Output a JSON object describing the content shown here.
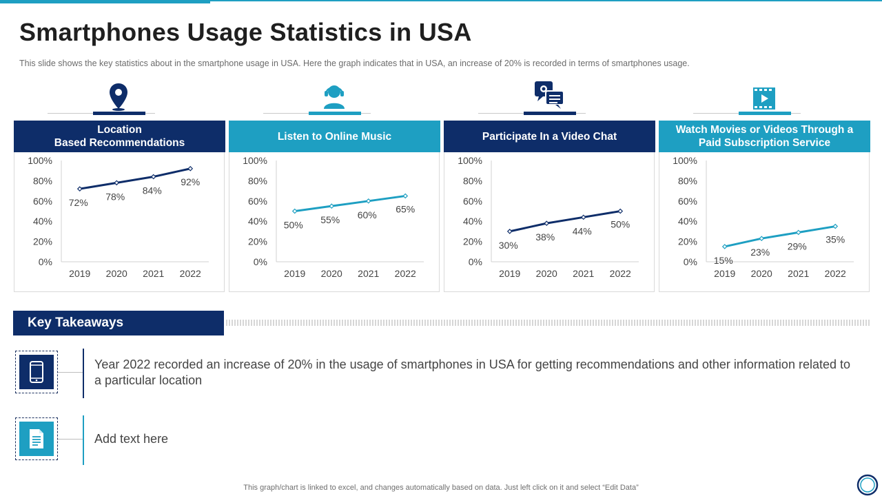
{
  "title": "Smartphones Usage Statistics in USA",
  "subtitle": "This slide shows the key statistics about in the smartphone usage in USA. Here the graph indicates that in USA, an increase of 20% is recorded in terms of smartphones usage.",
  "colors": {
    "dark": "#0e2d69",
    "light": "#1e9fc2"
  },
  "icons": [
    "location-pin-icon",
    "headset-user-icon",
    "chat-bubbles-icon",
    "video-play-icon"
  ],
  "chart_data": [
    {
      "type": "line",
      "title": "Location Based Recommendations",
      "header_line1": "Location",
      "header_line2": "Based Recommendations",
      "categories": [
        "2019",
        "2020",
        "2021",
        "2022"
      ],
      "values": [
        72,
        78,
        84,
        92
      ],
      "labels": [
        "72%",
        "78%",
        "84%",
        "92%"
      ],
      "ylim": [
        0,
        100
      ],
      "yticks": [
        "0%",
        "20%",
        "40%",
        "60%",
        "80%",
        "100%"
      ],
      "color": "#0e2d69"
    },
    {
      "type": "line",
      "title": "Listen to Online Music",
      "header_line1": "Listen to Online Music",
      "header_line2": "",
      "categories": [
        "2019",
        "2020",
        "2021",
        "2022"
      ],
      "values": [
        50,
        55,
        60,
        65
      ],
      "labels": [
        "50%",
        "55%",
        "60%",
        "65%"
      ],
      "ylim": [
        0,
        100
      ],
      "yticks": [
        "0%",
        "20%",
        "40%",
        "60%",
        "80%",
        "100%"
      ],
      "color": "#1e9fc2"
    },
    {
      "type": "line",
      "title": "Participate In a Video Chat",
      "header_line1": "Participate In a Video Chat",
      "header_line2": "",
      "categories": [
        "2019",
        "2020",
        "2021",
        "2022"
      ],
      "values": [
        30,
        38,
        44,
        50
      ],
      "labels": [
        "30%",
        "38%",
        "44%",
        "50%"
      ],
      "ylim": [
        0,
        100
      ],
      "yticks": [
        "0%",
        "20%",
        "40%",
        "60%",
        "80%",
        "100%"
      ],
      "color": "#0e2d69"
    },
    {
      "type": "line",
      "title": "Watch Movies or Videos Through a Paid Subscription Service",
      "header_line1": "Watch Movies or Videos Through a",
      "header_line2": "Paid Subscription Service",
      "categories": [
        "2019",
        "2020",
        "2021",
        "2022"
      ],
      "values": [
        15,
        23,
        29,
        35
      ],
      "labels": [
        "15%",
        "23%",
        "29%",
        "35%"
      ],
      "ylim": [
        0,
        100
      ],
      "yticks": [
        "0%",
        "20%",
        "40%",
        "60%",
        "80%",
        "100%"
      ],
      "color": "#1e9fc2"
    }
  ],
  "key_takeaways": {
    "title": "Key Takeaways",
    "items": [
      {
        "icon": "smartphone-icon",
        "text": "Year 2022 recorded an increase of 20% in the usage of smartphones in USA for getting recommendations and other information related to a particular location"
      },
      {
        "icon": "document-icon",
        "text": "Add text here"
      }
    ]
  },
  "footer": "This graph/chart is linked to excel, and changes automatically based on data. Just left click on it and select “Edit Data”"
}
